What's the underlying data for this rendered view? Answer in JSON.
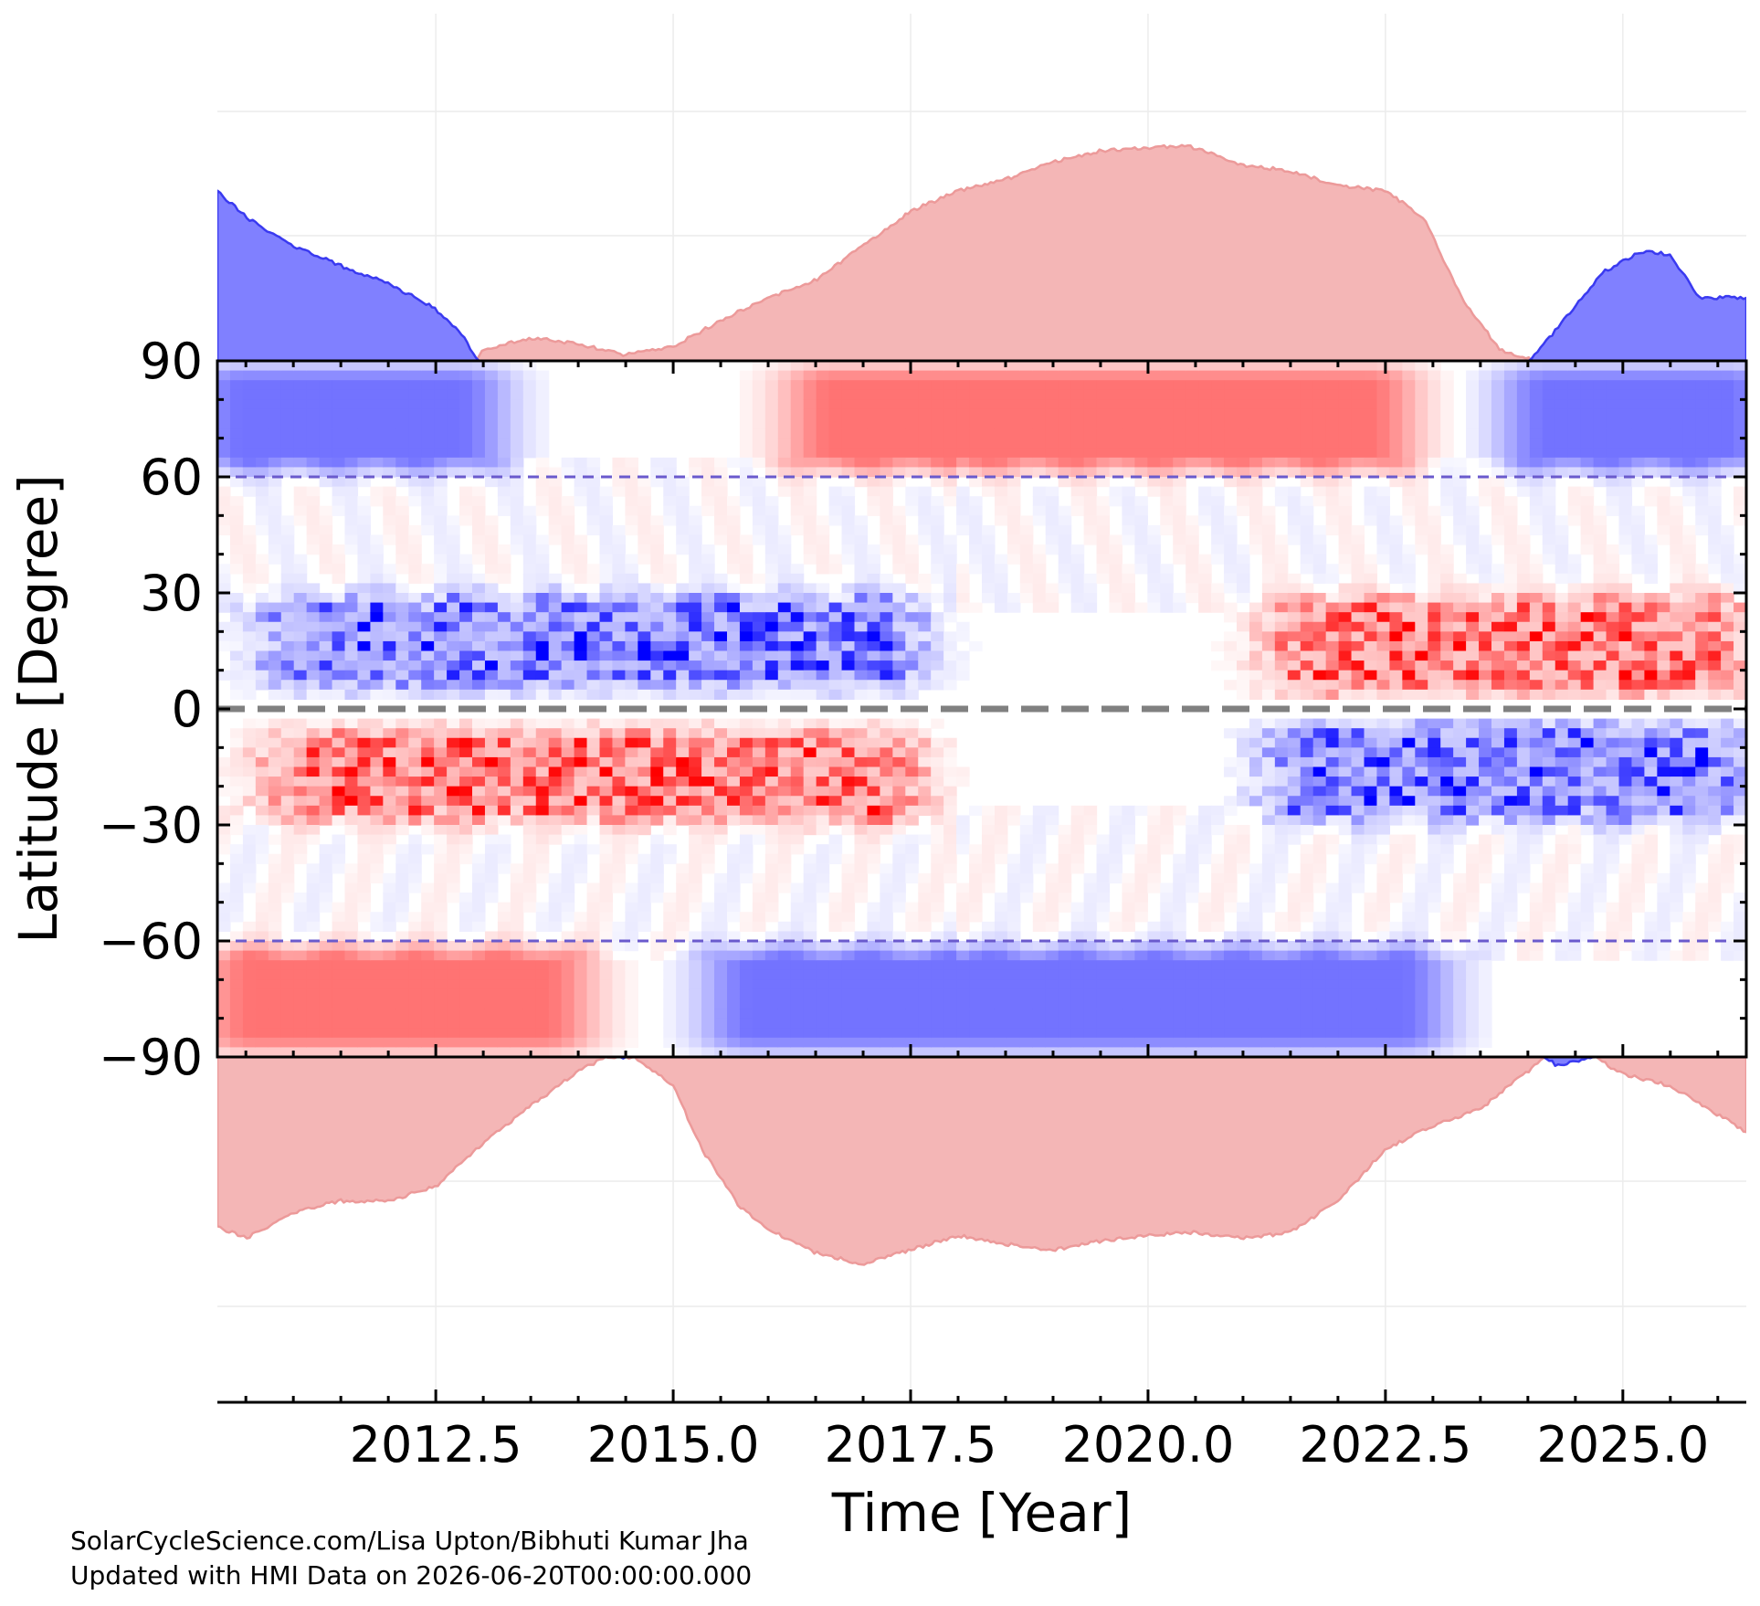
{
  "chart_data": {
    "type": "heatmap",
    "title": "",
    "xlabel": "Time [Year]",
    "ylabel": "Latitude [Degree]",
    "xlim": [
      2010.2,
      2026.3
    ],
    "ylim": [
      -90,
      90
    ],
    "x_ticks": [
      "2012.5",
      "2015.0",
      "2017.5",
      "2020.0",
      "2022.5",
      "2025.0"
    ],
    "x_tick_values": [
      2012.5,
      2015.0,
      2017.5,
      2020.0,
      2022.5,
      2025.0
    ],
    "y_ticks": [
      "90",
      "60",
      "30",
      "0",
      "−30",
      "−60",
      "−90"
    ],
    "y_tick_values": [
      90,
      60,
      30,
      0,
      -30,
      -60,
      -90
    ],
    "reference_lines": [
      {
        "y": 60,
        "style": "dashed",
        "color": "#6a5acd"
      },
      {
        "y": -60,
        "style": "dashed",
        "color": "#6a5acd"
      },
      {
        "y": 0,
        "style": "dashed",
        "color": "#808080"
      }
    ],
    "colors": {
      "positive": "#ff0000",
      "negative": "#0000ff",
      "zero": "#ffffff",
      "north_pos_fill": "#f4b6b6",
      "north_neg_fill": "#8080ff"
    },
    "grid": true,
    "polar_field_north": {
      "years": [
        2010.2,
        2010.5,
        2011.0,
        2011.5,
        2012.0,
        2012.5,
        2012.8,
        2013.0,
        2013.5,
        2014.0,
        2014.5,
        2015.0,
        2015.5,
        2016.0,
        2016.5,
        2017.0,
        2017.5,
        2018.0,
        2018.5,
        2019.0,
        2019.5,
        2020.0,
        2020.4,
        2021.0,
        2021.5,
        2022.0,
        2022.5,
        2022.9,
        2023.3,
        2023.7,
        2024.0,
        2024.4,
        2024.8,
        2025.2,
        2025.5,
        2025.8,
        2026.3
      ],
      "values": [
        0.59,
        0.5,
        0.4,
        0.33,
        0.27,
        0.18,
        0.08,
        -0.04,
        -0.08,
        -0.06,
        -0.02,
        -0.05,
        -0.14,
        -0.22,
        -0.28,
        -0.4,
        -0.52,
        -0.59,
        -0.63,
        -0.69,
        -0.73,
        -0.74,
        -0.75,
        -0.68,
        -0.66,
        -0.61,
        -0.59,
        -0.5,
        -0.22,
        -0.04,
        -0.01,
        0.15,
        0.31,
        0.38,
        0.37,
        0.22,
        0.22
      ]
    },
    "polar_field_south": {
      "years": [
        2010.2,
        2010.5,
        2011.0,
        2011.5,
        2012.0,
        2012.5,
        2013.0,
        2013.5,
        2014.0,
        2014.3,
        2014.6,
        2015.0,
        2015.3,
        2015.7,
        2016.0,
        2016.5,
        2017.0,
        2017.5,
        2018.0,
        2018.5,
        2019.0,
        2019.5,
        2020.0,
        2020.5,
        2021.0,
        2021.5,
        2022.0,
        2022.5,
        2023.0,
        2023.5,
        2024.0,
        2024.3,
        2024.7,
        2025.0,
        2025.5,
        2026.0,
        2026.3
      ],
      "values": [
        -0.59,
        -0.63,
        -0.54,
        -0.5,
        -0.5,
        -0.45,
        -0.3,
        -0.17,
        -0.05,
        0.0,
        0.0,
        -0.1,
        -0.32,
        -0.52,
        -0.6,
        -0.68,
        -0.72,
        -0.67,
        -0.62,
        -0.65,
        -0.67,
        -0.64,
        -0.62,
        -0.61,
        -0.63,
        -0.61,
        -0.5,
        -0.32,
        -0.24,
        -0.18,
        -0.05,
        0.03,
        0.0,
        -0.06,
        -0.1,
        -0.2,
        -0.26
      ]
    },
    "heatmap_features": [
      {
        "region": "north polar",
        "lat_range": [
          60,
          90
        ],
        "years": [
          2010.2,
          2013.0
        ],
        "sign": "negative"
      },
      {
        "region": "north polar",
        "lat_range": [
          60,
          90
        ],
        "years": [
          2016.0,
          2023.0
        ],
        "sign": "positive"
      },
      {
        "region": "north polar",
        "lat_range": [
          60,
          90
        ],
        "years": [
          2024.0,
          2026.3
        ],
        "sign": "negative"
      },
      {
        "region": "south polar",
        "lat_range": [
          -90,
          -60
        ],
        "years": [
          2010.2,
          2014.0
        ],
        "sign": "positive"
      },
      {
        "region": "south polar",
        "lat_range": [
          -90,
          -60
        ],
        "years": [
          2015.0,
          2023.5
        ],
        "sign": "negative"
      },
      {
        "region": "north active belt",
        "lat_range": [
          5,
          30
        ],
        "years": [
          2010.5,
          2017.8
        ],
        "sign": "negative"
      },
      {
        "region": "south active belt",
        "lat_range": [
          -30,
          -5
        ],
        "years": [
          2010.5,
          2017.8
        ],
        "sign": "positive"
      },
      {
        "region": "north active belt",
        "lat_range": [
          3,
          30
        ],
        "years": [
          2021.3,
          2026.3
        ],
        "sign": "positive"
      },
      {
        "region": "south active belt",
        "lat_range": [
          -30,
          -3
        ],
        "years": [
          2021.3,
          2026.3
        ],
        "sign": "negative"
      }
    ]
  },
  "credits": {
    "line1": "SolarCycleScience.com/Lisa Upton/Bibhuti Kumar Jha",
    "line2": "Updated with HMI Data on 2026-06-20T00:00:00.000"
  }
}
